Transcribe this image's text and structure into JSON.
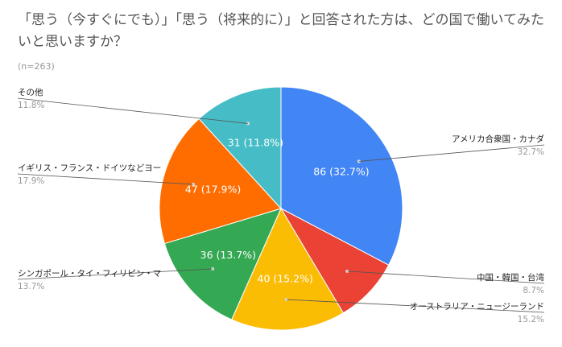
{
  "chart_data": {
    "type": "pie",
    "title": "「思う（今すぐにでも）」「思う（将来的に）」と回答された方は、どの国で働いてみたいと思いますか？",
    "subtitle": "(n=263)",
    "slices": [
      {
        "label": "アメリカ合衆国・カナダ",
        "value": 86,
        "percent": "32.7%",
        "inner_label": "86 (32.7%)",
        "color": "#4285f4",
        "side": "right"
      },
      {
        "label": "中国・韓国・台湾",
        "value": 23,
        "percent": "8.7%",
        "inner_label": "",
        "color": "#ea4335",
        "side": "right"
      },
      {
        "label": "オーストラリア・ニュージーランド",
        "value": 40,
        "percent": "15.2%",
        "inner_label": "40 (15.2%)",
        "color": "#fbbc04",
        "side": "right"
      },
      {
        "label": "シンガポール・タイ・フィリピン・マ",
        "value": 36,
        "percent": "13.7%",
        "inner_label": "36 (13.7%)",
        "color": "#34a853",
        "side": "left"
      },
      {
        "label": "イギリス・フランス・ドイツなどヨー",
        "value": 47,
        "percent": "17.9%",
        "inner_label": "47 (17.9%)",
        "color": "#ff6d01",
        "side": "left"
      },
      {
        "label": "その他",
        "value": 31,
        "percent": "11.8%",
        "inner_label": "31 (11.8%)",
        "color": "#46bdc6",
        "side": "left"
      }
    ],
    "legend": "labels-outside"
  }
}
